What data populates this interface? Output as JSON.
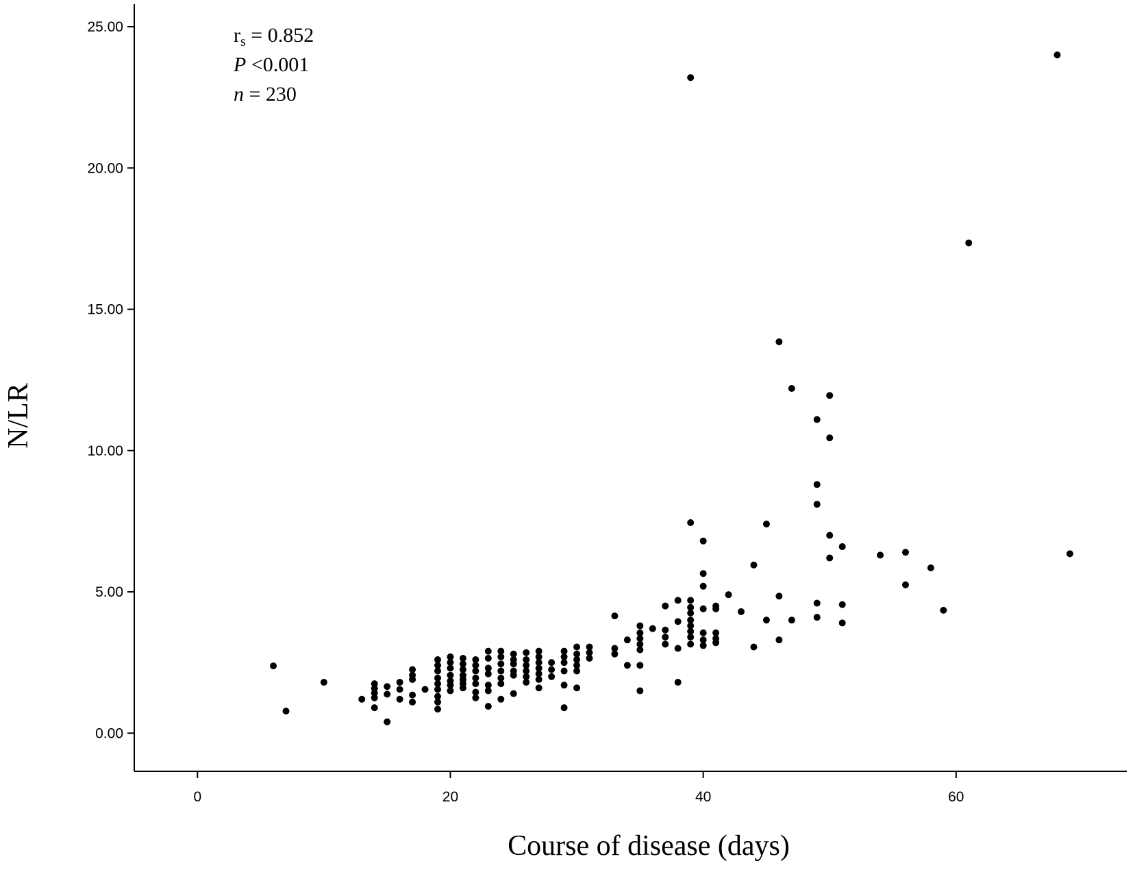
{
  "chart_data": {
    "type": "scatter",
    "title": "",
    "xlabel": "Course of disease (days)",
    "ylabel": "N/LR",
    "xlim": [
      -5,
      73.5
    ],
    "ylim": [
      -1.35,
      25.8
    ],
    "xticks": [
      0,
      20,
      40,
      60
    ],
    "yticks": [
      "0.00",
      "5.00",
      "10.00",
      "15.00",
      "20.00",
      "25.00"
    ],
    "grid": false,
    "legend": "none",
    "annotations": {
      "rs_symbol": "r",
      "rs_subscript": "s",
      "rs_value": " = 0.852",
      "p_symbol": "P",
      "p_value": " <0.001",
      "n_symbol": "n",
      "n_value": " = 230"
    },
    "points": [
      [
        6,
        2.38
      ],
      [
        7,
        0.78
      ],
      [
        10,
        1.8
      ],
      [
        13,
        1.2
      ],
      [
        14,
        1.75
      ],
      [
        14,
        1.58
      ],
      [
        14,
        1.42
      ],
      [
        14,
        1.25
      ],
      [
        14,
        0.9
      ],
      [
        15,
        1.65
      ],
      [
        15,
        1.38
      ],
      [
        15,
        0.4
      ],
      [
        16,
        1.8
      ],
      [
        16,
        1.55
      ],
      [
        16,
        1.2
      ],
      [
        17,
        2.25
      ],
      [
        17,
        2.05
      ],
      [
        17,
        1.9
      ],
      [
        17,
        1.35
      ],
      [
        17,
        1.1
      ],
      [
        18,
        1.55
      ],
      [
        19,
        2.6
      ],
      [
        19,
        2.4
      ],
      [
        19,
        2.2
      ],
      [
        19,
        1.95
      ],
      [
        19,
        1.75
      ],
      [
        19,
        1.55
      ],
      [
        19,
        1.3
      ],
      [
        19,
        1.1
      ],
      [
        19,
        0.85
      ],
      [
        20,
        2.7
      ],
      [
        20,
        2.5
      ],
      [
        20,
        2.3
      ],
      [
        20,
        2.05
      ],
      [
        20,
        1.85
      ],
      [
        20,
        1.7
      ],
      [
        20,
        1.5
      ],
      [
        21,
        2.65
      ],
      [
        21,
        2.45
      ],
      [
        21,
        2.25
      ],
      [
        21,
        2.05
      ],
      [
        21,
        1.9
      ],
      [
        21,
        1.75
      ],
      [
        21,
        1.6
      ],
      [
        22,
        2.6
      ],
      [
        22,
        2.4
      ],
      [
        22,
        2.2
      ],
      [
        22,
        1.95
      ],
      [
        22,
        1.75
      ],
      [
        22,
        1.45
      ],
      [
        22,
        1.25
      ],
      [
        23,
        2.9
      ],
      [
        23,
        2.65
      ],
      [
        23,
        2.3
      ],
      [
        23,
        2.1
      ],
      [
        23,
        1.7
      ],
      [
        23,
        1.5
      ],
      [
        23,
        0.95
      ],
      [
        24,
        2.9
      ],
      [
        24,
        2.7
      ],
      [
        24,
        2.45
      ],
      [
        24,
        2.2
      ],
      [
        24,
        1.95
      ],
      [
        24,
        1.75
      ],
      [
        24,
        1.2
      ],
      [
        25,
        2.8
      ],
      [
        25,
        2.6
      ],
      [
        25,
        2.45
      ],
      [
        25,
        2.2
      ],
      [
        25,
        2.05
      ],
      [
        25,
        1.4
      ],
      [
        26,
        2.85
      ],
      [
        26,
        2.6
      ],
      [
        26,
        2.4
      ],
      [
        26,
        2.2
      ],
      [
        26,
        2.0
      ],
      [
        26,
        1.8
      ],
      [
        27,
        2.9
      ],
      [
        27,
        2.7
      ],
      [
        27,
        2.5
      ],
      [
        27,
        2.3
      ],
      [
        27,
        2.1
      ],
      [
        27,
        1.9
      ],
      [
        27,
        1.6
      ],
      [
        28,
        2.5
      ],
      [
        28,
        2.25
      ],
      [
        28,
        2.0
      ],
      [
        29,
        2.9
      ],
      [
        29,
        2.7
      ],
      [
        29,
        2.5
      ],
      [
        29,
        2.2
      ],
      [
        29,
        1.7
      ],
      [
        29,
        0.9
      ],
      [
        30,
        3.05
      ],
      [
        30,
        2.8
      ],
      [
        30,
        2.6
      ],
      [
        30,
        2.4
      ],
      [
        30,
        2.2
      ],
      [
        30,
        1.6
      ],
      [
        31,
        3.05
      ],
      [
        31,
        2.85
      ],
      [
        31,
        2.65
      ],
      [
        33,
        4.15
      ],
      [
        33,
        3.0
      ],
      [
        33,
        2.8
      ],
      [
        34,
        3.3
      ],
      [
        34,
        2.4
      ],
      [
        35,
        3.8
      ],
      [
        35,
        3.55
      ],
      [
        35,
        3.35
      ],
      [
        35,
        3.15
      ],
      [
        35,
        2.95
      ],
      [
        35,
        2.4
      ],
      [
        35,
        1.5
      ],
      [
        36,
        3.7
      ],
      [
        37,
        4.5
      ],
      [
        37,
        3.65
      ],
      [
        37,
        3.4
      ],
      [
        37,
        3.15
      ],
      [
        38,
        4.7
      ],
      [
        38,
        3.95
      ],
      [
        38,
        3.0
      ],
      [
        38,
        1.8
      ],
      [
        39,
        23.2
      ],
      [
        39,
        7.45
      ],
      [
        39,
        4.7
      ],
      [
        39,
        4.45
      ],
      [
        39,
        4.25
      ],
      [
        39,
        4.0
      ],
      [
        39,
        3.8
      ],
      [
        39,
        3.6
      ],
      [
        39,
        3.4
      ],
      [
        39,
        3.15
      ],
      [
        40,
        6.8
      ],
      [
        40,
        5.65
      ],
      [
        40,
        5.2
      ],
      [
        40,
        4.4
      ],
      [
        40,
        3.55
      ],
      [
        40,
        3.3
      ],
      [
        40,
        3.1
      ],
      [
        41,
        4.5
      ],
      [
        41,
        4.4
      ],
      [
        41,
        3.55
      ],
      [
        41,
        3.35
      ],
      [
        41,
        3.2
      ],
      [
        42,
        4.9
      ],
      [
        43,
        4.3
      ],
      [
        44,
        5.95
      ],
      [
        44,
        3.05
      ],
      [
        45,
        7.4
      ],
      [
        45,
        4.0
      ],
      [
        46,
        13.85
      ],
      [
        46,
        4.85
      ],
      [
        46,
        3.3
      ],
      [
        47,
        12.2
      ],
      [
        47,
        4.0
      ],
      [
        49,
        11.1
      ],
      [
        49,
        8.8
      ],
      [
        49,
        8.1
      ],
      [
        49,
        4.6
      ],
      [
        49,
        4.1
      ],
      [
        50,
        11.95
      ],
      [
        50,
        10.45
      ],
      [
        50,
        7.0
      ],
      [
        50,
        6.2
      ],
      [
        51,
        6.6
      ],
      [
        51,
        4.55
      ],
      [
        51,
        3.9
      ],
      [
        54,
        6.3
      ],
      [
        56,
        6.4
      ],
      [
        56,
        5.25
      ],
      [
        58,
        5.85
      ],
      [
        59,
        4.35
      ],
      [
        61,
        17.35
      ],
      [
        68,
        24.0
      ],
      [
        69,
        6.35
      ]
    ]
  }
}
